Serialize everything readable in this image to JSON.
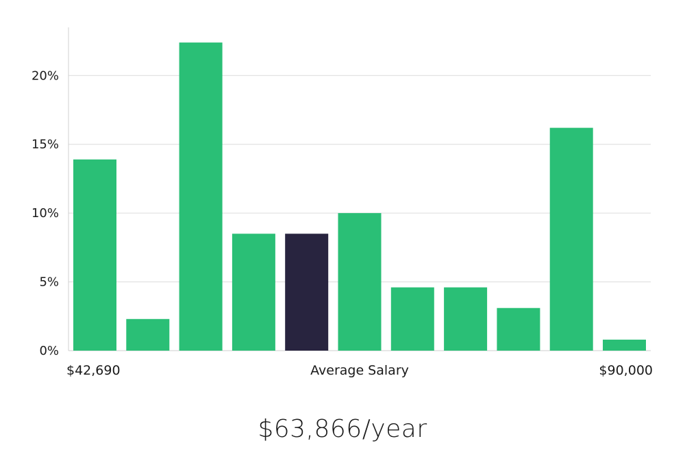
{
  "chart_data": {
    "type": "bar",
    "title": "",
    "xlabel": "Average Salary",
    "ylabel": "",
    "ylim": [
      0,
      23.5
    ],
    "y_ticks": [
      0,
      5,
      10,
      15,
      20
    ],
    "y_tick_format": "{v}%",
    "x_min_label": "$42,690",
    "x_max_label": "$90,000",
    "values": [
      13.9,
      2.3,
      22.4,
      8.5,
      8.5,
      10.0,
      4.6,
      4.6,
      3.1,
      16.2,
      0.8
    ],
    "highlight_index": 4,
    "colors": {
      "bar": "#2abf76",
      "highlight": "#28243f",
      "grid": "#dcdcdc",
      "axis": "#cfcfcf"
    }
  },
  "salary": {
    "value": "$63,866/year"
  }
}
